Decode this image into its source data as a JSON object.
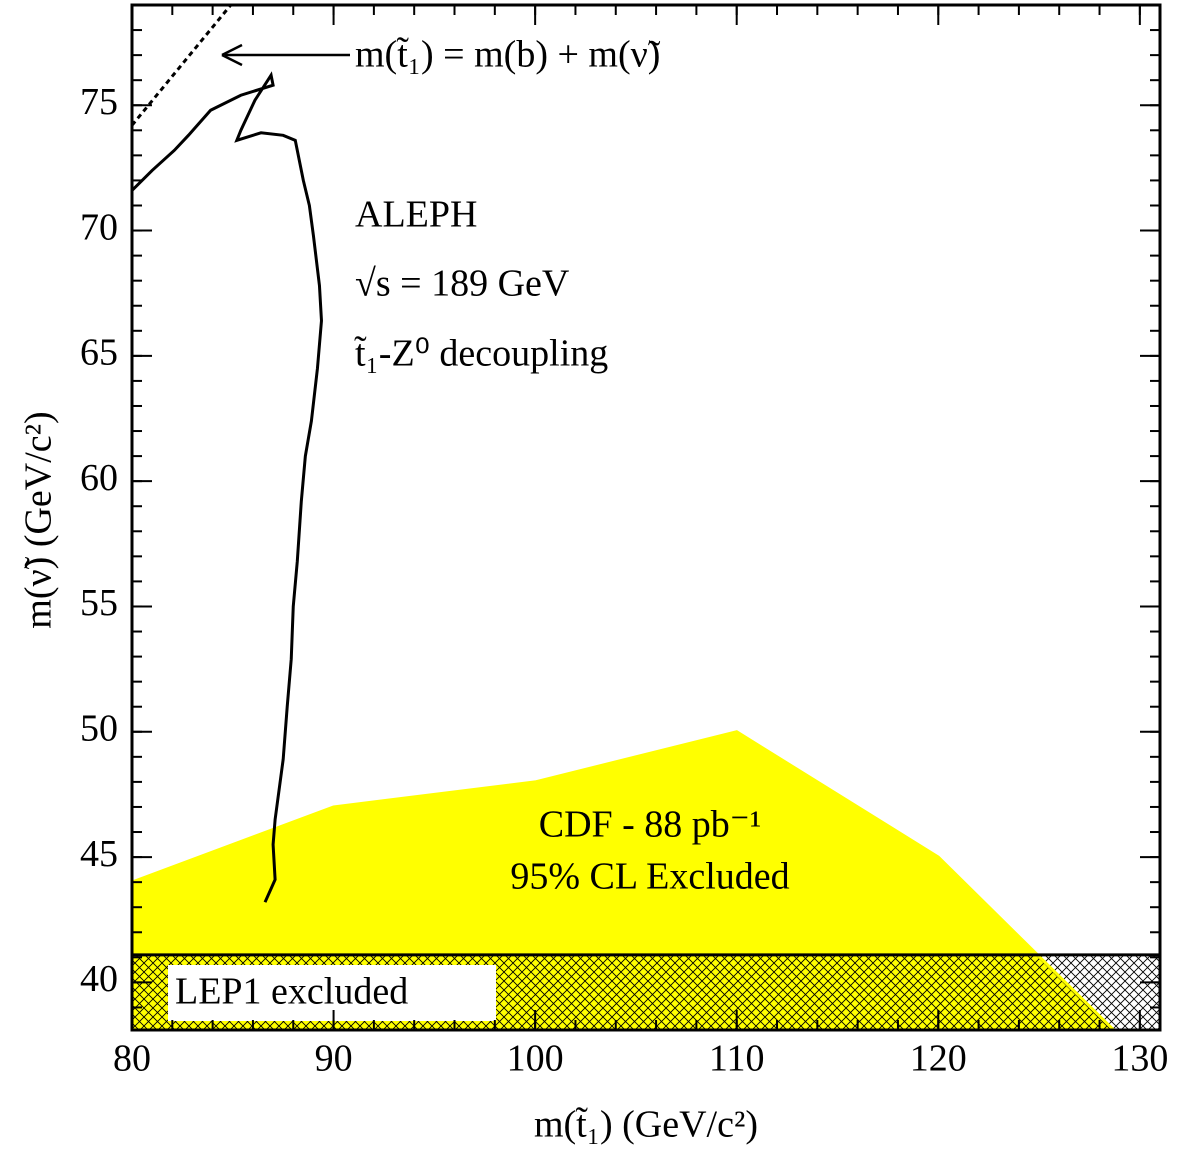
{
  "chart_data": {
    "type": "line",
    "xlabel": "m(t̃₁) (GeV/c²)",
    "ylabel": "m(ν̃) (GeV/c²)",
    "xlim": [
      80,
      131
    ],
    "ylim": [
      38.1,
      79
    ],
    "xticks": [
      80,
      90,
      100,
      110,
      120,
      130
    ],
    "yticks": [
      40,
      45,
      50,
      55,
      60,
      65,
      70,
      75
    ],
    "annotations": [
      "m(t̃₁) = m(b) + m(ν̃)",
      "ALEPH",
      "√s = 189 GeV",
      "t̃₁-Z⁰ decoupling",
      "CDF - 88 pb⁻¹",
      "95% CL Excluded",
      "LEP1 excluded"
    ],
    "series": [
      {
        "style": "filled",
        "color": "#ffff00",
        "x": [
          80,
          90,
          100,
          110,
          120,
          128.7
        ],
        "values": [
          44,
          47,
          48,
          50,
          45,
          38.1
        ]
      },
      {
        "style": "hatched",
        "color": "#000000",
        "x": [
          80,
          131
        ],
        "values": [
          41.1,
          41.1
        ]
      },
      {
        "style": "solid",
        "color": "#000000",
        "x": [
          86.6,
          87.1,
          87.0,
          87.1,
          87.5,
          87.7,
          87.9,
          88.0,
          88.2,
          88.4,
          88.6,
          88.9,
          89.2,
          89.4,
          89.3,
          89.0,
          88.8,
          88.5,
          88.1,
          87.5,
          86.4,
          85.2,
          85.4,
          86.1,
          86.9,
          87.0,
          85.4,
          83.9,
          82.8,
          82.1,
          81.0,
          80
        ],
        "values": [
          43.2,
          44.1,
          45.5,
          46.5,
          48.9,
          51,
          52.9,
          55,
          56.8,
          59.2,
          61,
          62.4,
          64.5,
          66.4,
          67.8,
          69.8,
          71,
          72.0,
          73.6,
          73.8,
          73.9,
          73.6,
          74.0,
          75.2,
          76.2,
          75.8,
          75.4,
          74.8,
          73.8,
          73.2,
          72.4,
          71.6
        ]
      },
      {
        "style": "dashed",
        "color": "#000000",
        "x": [
          80,
          84.9
        ],
        "values": [
          74.2,
          79
        ]
      }
    ]
  }
}
